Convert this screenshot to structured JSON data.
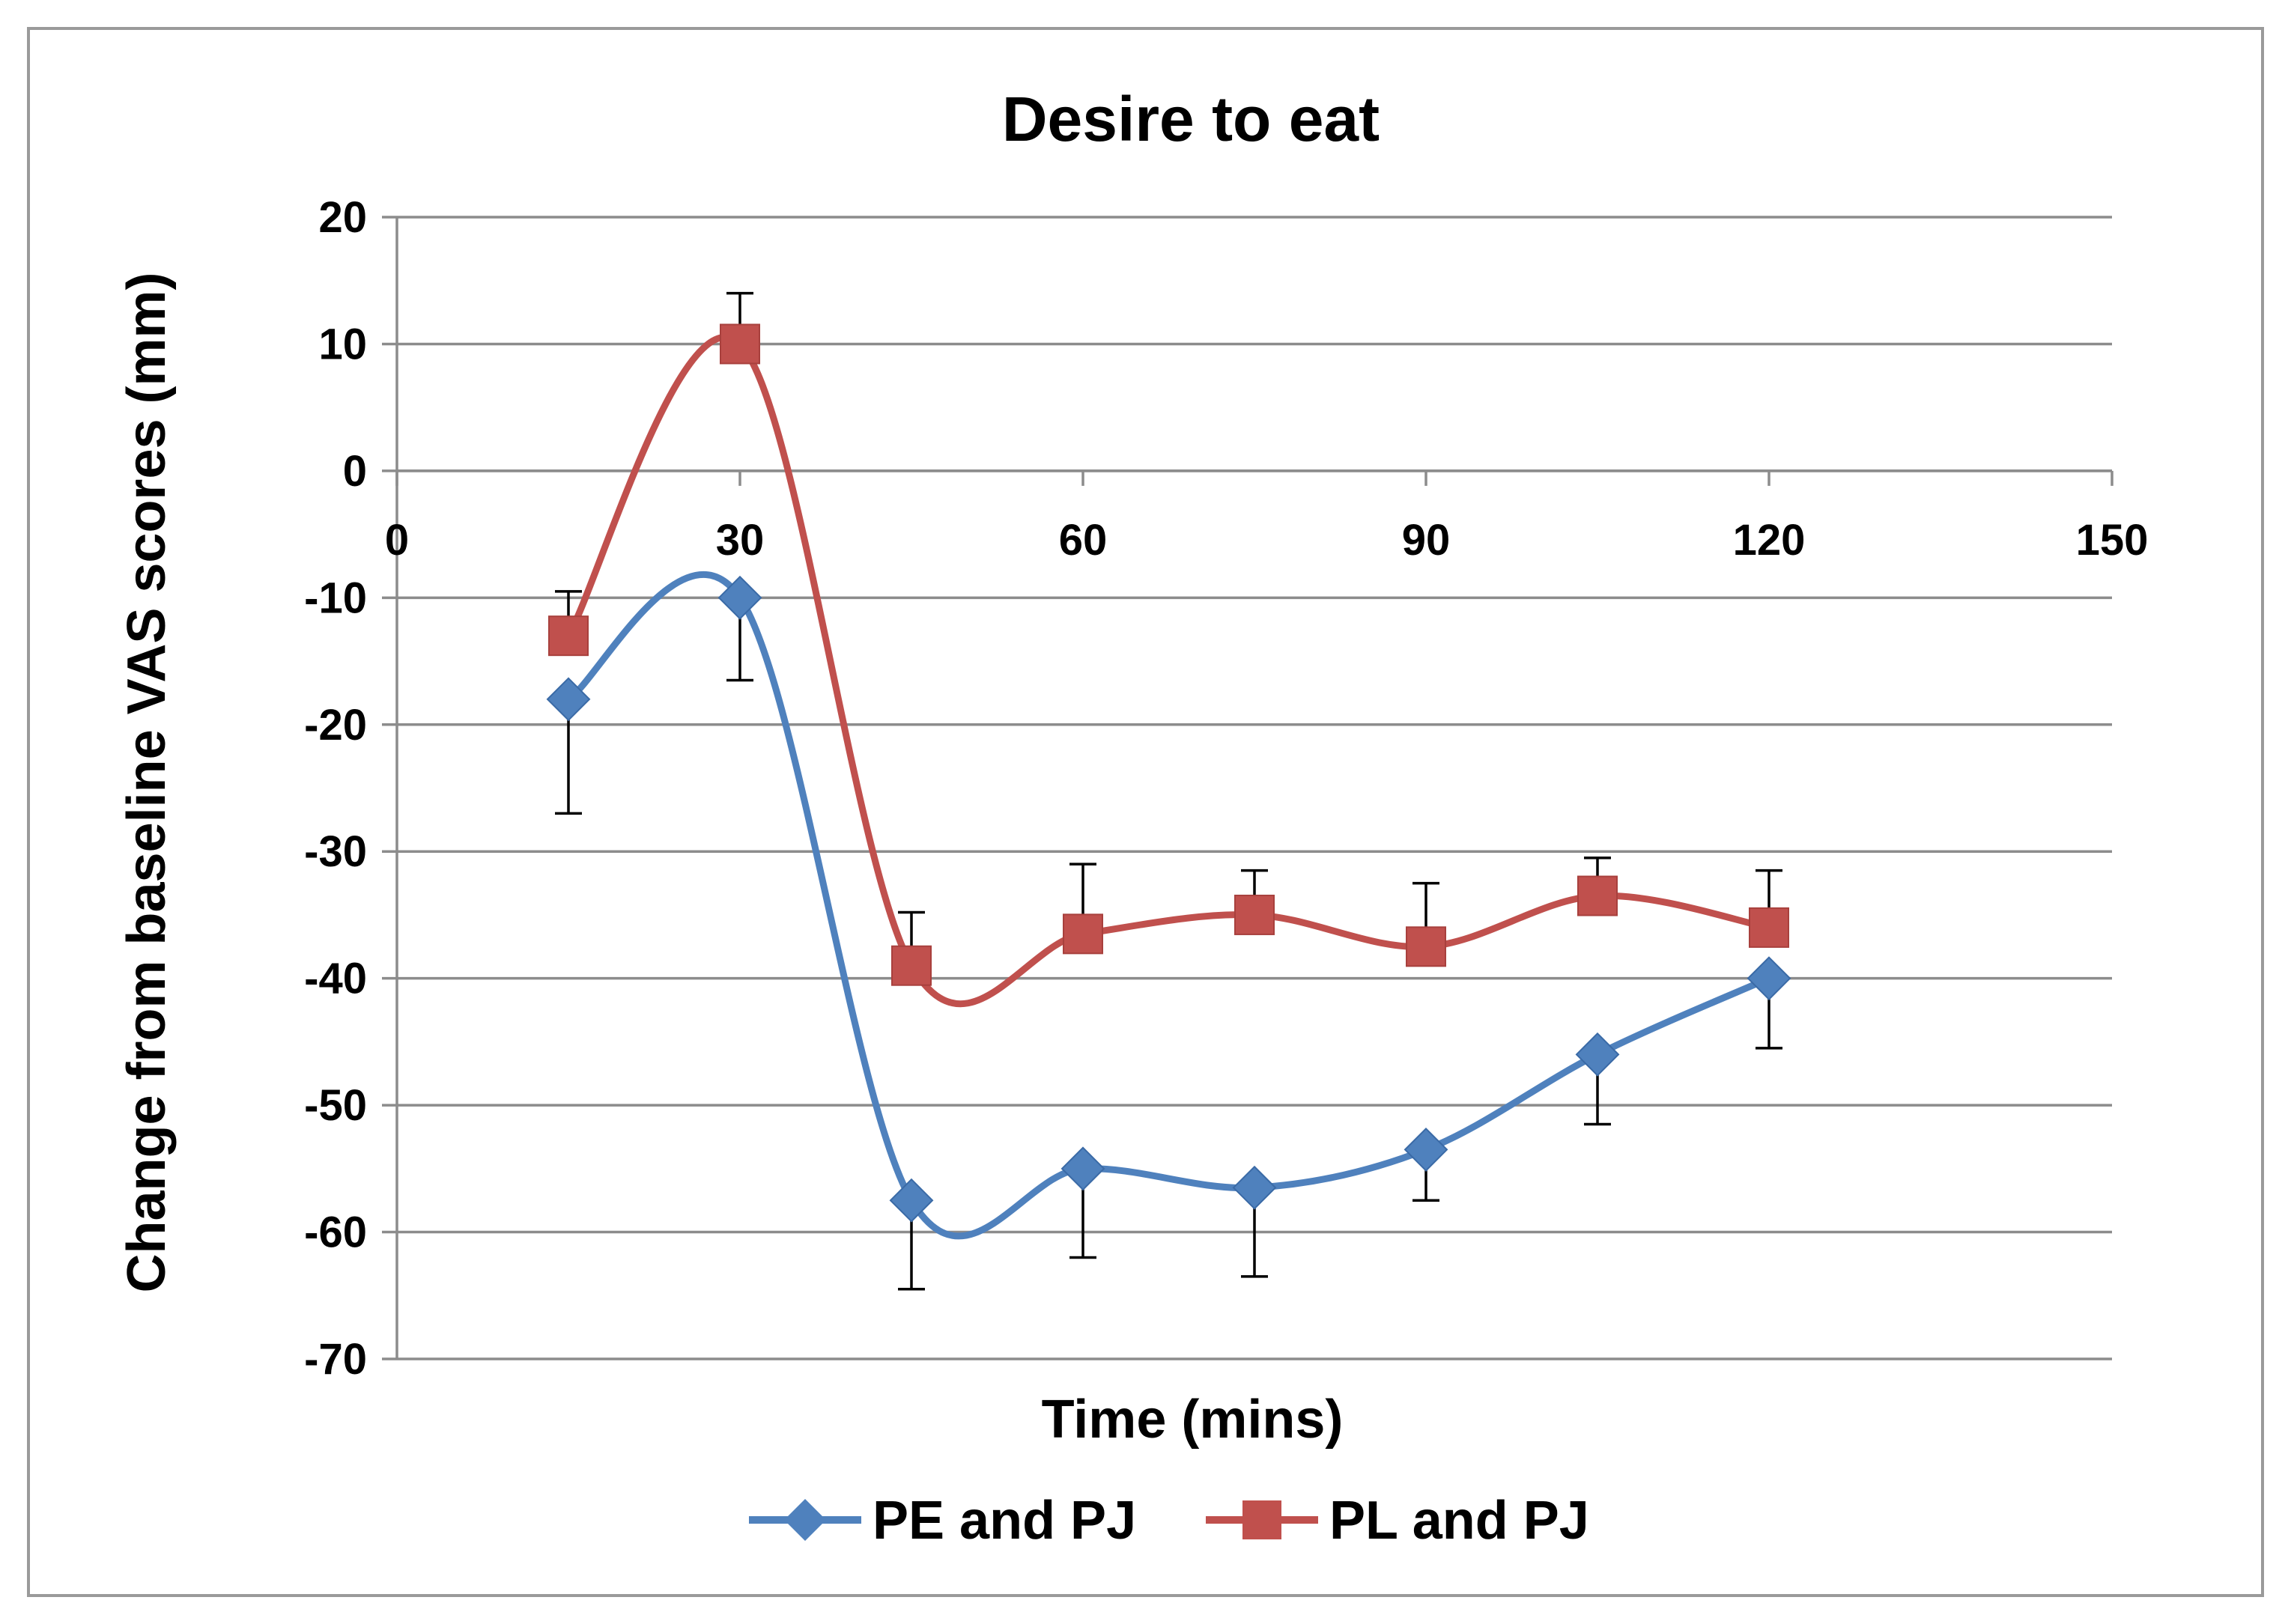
{
  "chart_data": {
    "type": "line",
    "title": "Desire to eat",
    "xlabel": "Time (mins)",
    "ylabel": "Change from baseline VAS scores (mm)",
    "xlim": [
      0,
      150
    ],
    "ylim": [
      -70,
      20
    ],
    "xticks": [
      0,
      30,
      60,
      90,
      120,
      150
    ],
    "yticks": [
      20,
      10,
      0,
      -10,
      -20,
      -30,
      -40,
      -50,
      -60,
      -70
    ],
    "x_axis_crosses_at": 0,
    "grid": true,
    "legend_position": "bottom",
    "x": [
      15,
      30,
      45,
      60,
      75,
      90,
      105,
      120
    ],
    "series": [
      {
        "name": "PE and PJ",
        "color": "#4f81bd",
        "marker": "diamond",
        "values": [
          -18,
          -10,
          -57.5,
          -55,
          -56.5,
          -53.5,
          -46,
          -40
        ],
        "error": [
          9,
          6.5,
          7,
          7,
          7,
          4,
          5.5,
          5.5
        ]
      },
      {
        "name": "PL and PJ",
        "color": "#c0504d",
        "marker": "square",
        "values": [
          -13,
          10,
          -39,
          -36.5,
          -35,
          -37.5,
          -33.5,
          -36
        ],
        "error": [
          3.5,
          4,
          4.2,
          5.5,
          3.5,
          5,
          3,
          4.5
        ]
      }
    ]
  }
}
